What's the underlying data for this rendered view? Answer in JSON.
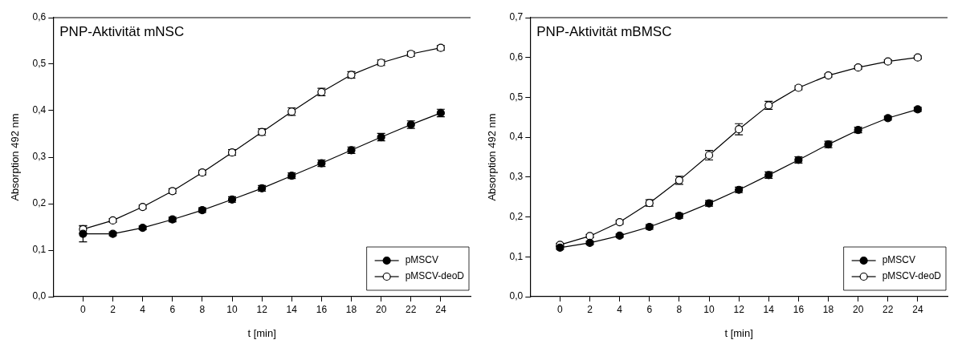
{
  "chart_data": [
    {
      "type": "line",
      "title": "PNP-Aktivität mNSC",
      "xlabel": "t [min]",
      "ylabel": "Absorption 492 nm",
      "x": [
        0,
        2,
        4,
        6,
        8,
        10,
        12,
        14,
        16,
        18,
        20,
        22,
        24
      ],
      "series": [
        {
          "name": "pMSCV",
          "color": "#000000",
          "values": [
            0.135,
            0.135,
            0.148,
            0.166,
            0.186,
            0.209,
            0.233,
            0.26,
            0.287,
            0.315,
            0.343,
            0.37,
            0.395
          ],
          "errors": [
            0.017,
            0.004,
            0.004,
            0.005,
            0.005,
            0.006,
            0.006,
            0.006,
            0.007,
            0.007,
            0.008,
            0.008,
            0.008
          ]
        },
        {
          "name": "pMSCV-deoD",
          "color": "#000000",
          "values": [
            0.145,
            0.164,
            0.193,
            0.227,
            0.267,
            0.31,
            0.354,
            0.398,
            0.44,
            0.477,
            0.503,
            0.522,
            0.535
          ],
          "errors": [
            0.008,
            0.004,
            0.004,
            0.005,
            0.005,
            0.006,
            0.007,
            0.008,
            0.008,
            0.007,
            0.006,
            0.005,
            0.005
          ]
        }
      ],
      "xlim": [
        -2,
        26
      ],
      "xticks": [
        0,
        2,
        4,
        6,
        8,
        10,
        12,
        14,
        16,
        18,
        20,
        22,
        24
      ],
      "ylim": [
        0,
        0.6
      ],
      "yticks": [
        {
          "value": 0,
          "label": "0,0"
        },
        {
          "value": 0.1,
          "label": "0,1"
        },
        {
          "value": 0.2,
          "label": "0,2"
        },
        {
          "value": 0.3,
          "label": "0,3"
        },
        {
          "value": 0.4,
          "label": "0,4"
        },
        {
          "value": 0.5,
          "label": "0,5"
        },
        {
          "value": 0.6,
          "label": "0,6"
        }
      ],
      "marker": "circle",
      "legend": "bottom right",
      "grid": false
    },
    {
      "type": "line",
      "title": "PNP-Aktivität mBMSC",
      "xlabel": "t [min]",
      "ylabel": "Absorption 492 nm",
      "x": [
        0,
        2,
        4,
        6,
        8,
        10,
        12,
        14,
        16,
        18,
        20,
        22,
        24
      ],
      "series": [
        {
          "name": "pMSCV",
          "color": "#000000",
          "values": [
            0.123,
            0.135,
            0.153,
            0.175,
            0.203,
            0.234,
            0.268,
            0.305,
            0.343,
            0.382,
            0.418,
            0.448,
            0.47
          ],
          "errors": [
            0.004,
            0.004,
            0.004,
            0.006,
            0.006,
            0.007,
            0.007,
            0.008,
            0.008,
            0.008,
            0.007,
            0.005,
            0.005
          ]
        },
        {
          "name": "pMSCV-deoD",
          "color": "#000000",
          "values": [
            0.13,
            0.152,
            0.187,
            0.235,
            0.292,
            0.355,
            0.42,
            0.48,
            0.524,
            0.555,
            0.575,
            0.59,
            0.6
          ],
          "errors": [
            0.004,
            0.004,
            0.005,
            0.008,
            0.01,
            0.012,
            0.014,
            0.01,
            0.005,
            0.004,
            0.004,
            0.004,
            0.004
          ]
        }
      ],
      "xlim": [
        -2,
        26
      ],
      "xticks": [
        0,
        2,
        4,
        6,
        8,
        10,
        12,
        14,
        16,
        18,
        20,
        22,
        24
      ],
      "ylim": [
        0,
        0.7
      ],
      "yticks": [
        {
          "value": 0,
          "label": "0,0"
        },
        {
          "value": 0.1,
          "label": "0,1"
        },
        {
          "value": 0.2,
          "label": "0,2"
        },
        {
          "value": 0.3,
          "label": "0,3"
        },
        {
          "value": 0.4,
          "label": "0,4"
        },
        {
          "value": 0.5,
          "label": "0,5"
        },
        {
          "value": 0.6,
          "label": "0,6"
        },
        {
          "value": 0.7,
          "label": "0,7"
        }
      ],
      "marker": "circle",
      "legend": "bottom right",
      "grid": false
    }
  ]
}
